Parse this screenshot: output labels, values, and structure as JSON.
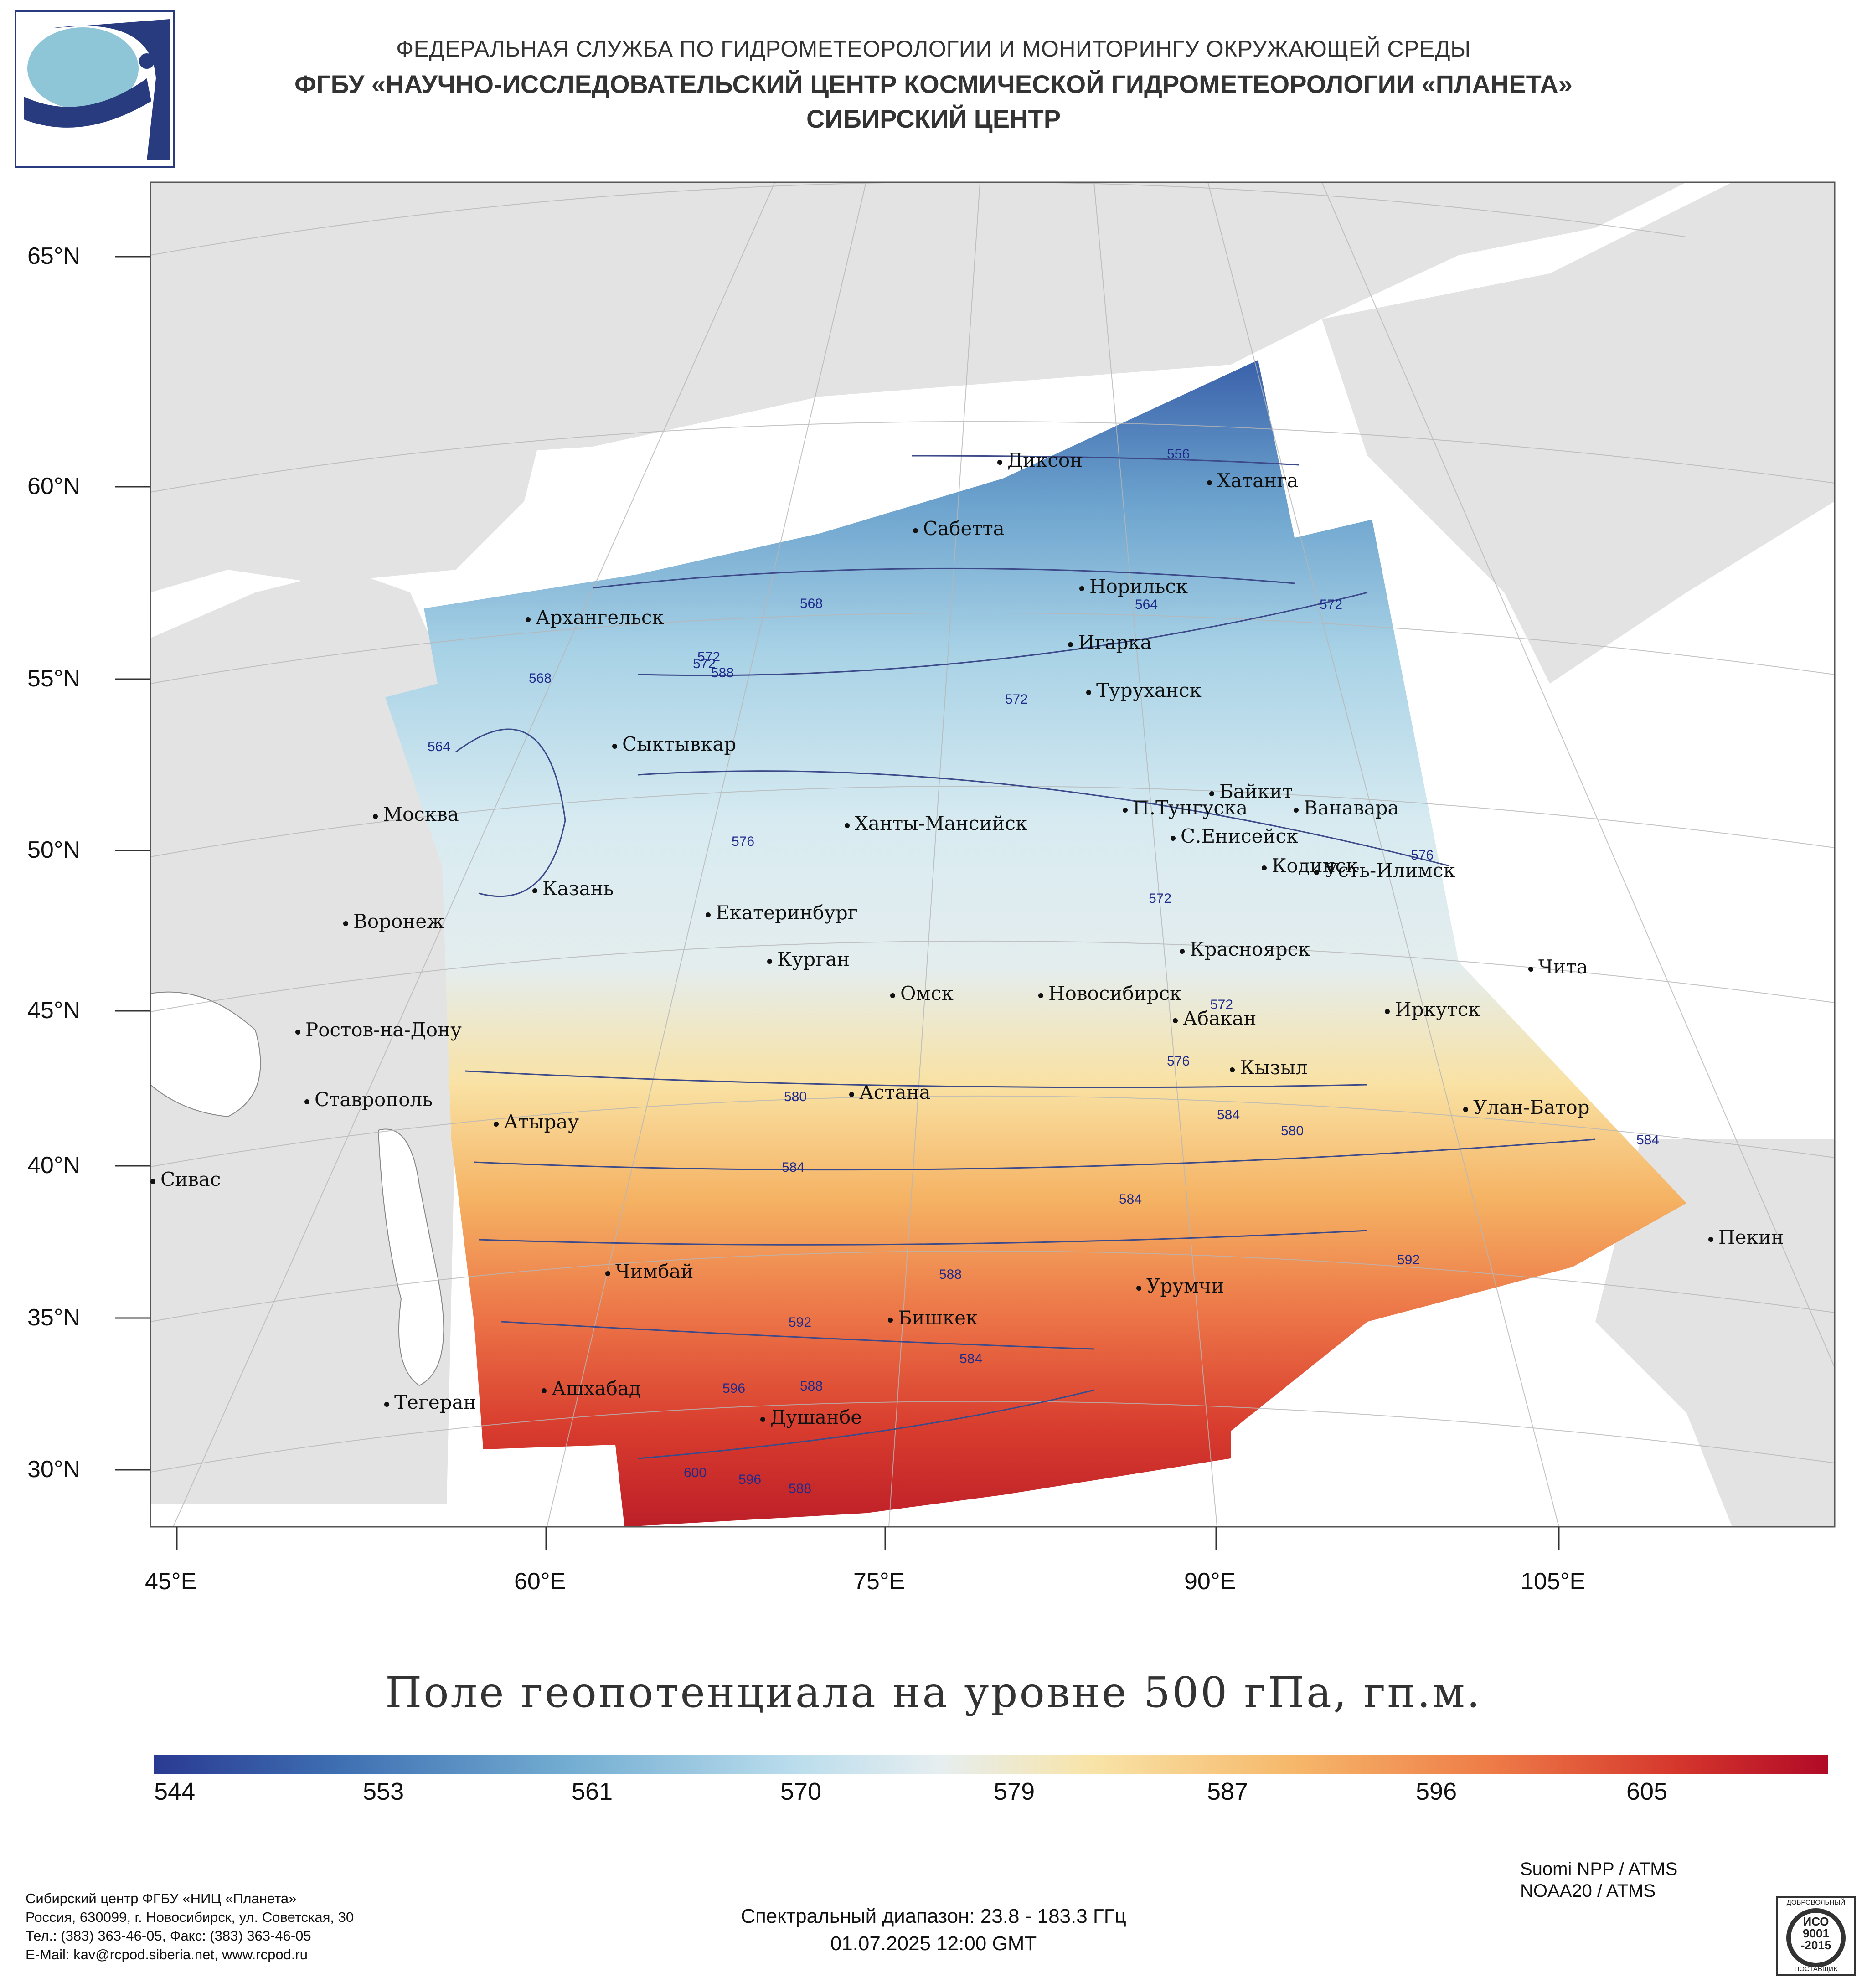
{
  "header": {
    "line1": "ФЕДЕРАЛЬНАЯ СЛУЖБА ПО ГИДРОМЕТЕОРОЛОГИИ И МОНИТОРИНГУ ОКРУЖАЮЩЕЙ СРЕДЫ",
    "line2": "ФГБУ «НАУЧНО-ИССЛЕДОВАТЕЛЬСКИЙ ЦЕНТР КОСМИЧЕСКОЙ ГИДРОМЕТЕОРОЛОГИИ «ПЛАНЕТА»",
    "line3": "СИБИРСКИЙ ЦЕНТР"
  },
  "map": {
    "lat_labels": [
      "65°N",
      "60°N",
      "55°N",
      "50°N",
      "45°N",
      "40°N",
      "35°N",
      "30°N"
    ],
    "lon_labels": [
      "45°E",
      "60°E",
      "75°E",
      "90°E",
      "105°E"
    ],
    "cities": [
      "Диксон",
      "Хатанга",
      "Сабетта",
      "Норильск",
      "Архангельск",
      "Игарка",
      "Туруханск",
      "Сыктывкар",
      "Байкит",
      "Москва",
      "П.Тунгуска",
      "Ванавара",
      "Ханты-Мансийск",
      "С.Енисейск",
      "Кодинск",
      "Усть-Илимск",
      "Казань",
      "Екатеринбург",
      "Воронеж",
      "Красноярск",
      "Курган",
      "Чита",
      "Омск",
      "Новосибирск",
      "Ростов-на-Дону",
      "Иркутск",
      "Абакан",
      "Кызыл",
      "Астана",
      "Ставрополь",
      "Улан-Батор",
      "Атырау",
      "Сивас",
      "Пекин",
      "Чимбай",
      "Урумчи",
      "Бишкек",
      "Ашхабад",
      "Тегеран",
      "Душанбе"
    ],
    "contour_labels": [
      "556",
      "568",
      "564",
      "572",
      "572",
      "568",
      "572",
      "564",
      "576",
      "572",
      "576",
      "572",
      "572",
      "576",
      "580",
      "584",
      "584",
      "580",
      "584",
      "592",
      "588",
      "584",
      "588",
      "592",
      "596",
      "588",
      "600",
      "596",
      "588",
      "584"
    ],
    "colors": {
      "land": "#e3e3e3",
      "water": "#ffffff",
      "cold": "#2c3f97",
      "warm": "#b00a27",
      "contour": "#3d4a8a"
    }
  },
  "title": "Поле геопотенциала на уровне 500 гПа, гп.м.",
  "colorbar": {
    "ticks": [
      "544",
      "553",
      "561",
      "570",
      "579",
      "587",
      "596",
      "605"
    ],
    "stops": [
      "#2a3a92",
      "#3e6fb2",
      "#74aed2",
      "#b9dcec",
      "#e6eef0",
      "#f8e4a8",
      "#f6b86b",
      "#ee7b47",
      "#d5362c",
      "#b00a27"
    ]
  },
  "footer": {
    "address": [
      "Сибирский центр ФГБУ «НИЦ «Планета»",
      "Россия, 630099, г. Новосибирск, ул. Советская, 30",
      "Тел.: (383) 363-46-05, Факс: (383) 363-46-05",
      "E-Mail: kav@rcpod.siberia.net, www.rcpod.ru"
    ],
    "spectral": "Спектральный диапазон: 23.8 - 183.3 ГГц",
    "datetime": "01.07.2025 12:00 GMT",
    "satellites": [
      "Suomi NPP / ATMS",
      "NOAA20 / ATMS"
    ],
    "iso": {
      "top": "ДОБРОВОЛЬНЫЙ",
      "line1": "ИСО",
      "line2": "9001",
      "line3": "-2015",
      "bottom": "ПОСТАВЩИК"
    }
  }
}
